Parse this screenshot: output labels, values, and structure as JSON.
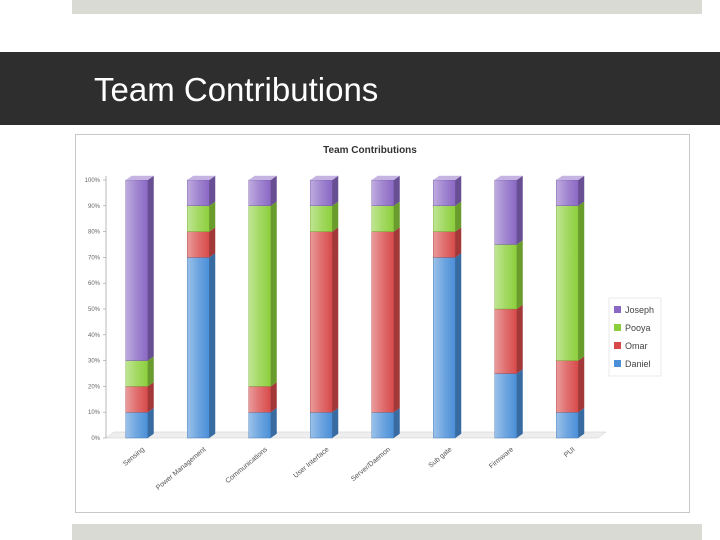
{
  "slide": {
    "title": "Team Contributions"
  },
  "chart_data": {
    "type": "bar",
    "stacked": true,
    "title": "Team Contributions",
    "categories": [
      "Sensing",
      "Power Management",
      "Communications",
      "User Interface",
      "Server/Daemon",
      "Sub gate",
      "Firmware",
      "PUI"
    ],
    "series": [
      {
        "name": "Daniel",
        "color": "#4a8fd8",
        "values": [
          10,
          70,
          10,
          10,
          10,
          70,
          25,
          10
        ]
      },
      {
        "name": "Omar",
        "color": "#d84a4a",
        "values": [
          10,
          10,
          10,
          70,
          70,
          10,
          25,
          20
        ]
      },
      {
        "name": "Pooya",
        "color": "#8ccf3c",
        "values": [
          10,
          10,
          70,
          10,
          10,
          10,
          25,
          60
        ]
      },
      {
        "name": "Joseph",
        "color": "#8a68c4",
        "values": [
          70,
          10,
          10,
          10,
          10,
          10,
          25,
          10
        ]
      }
    ],
    "yticks": [
      "0%",
      "10%",
      "20%",
      "30%",
      "40%",
      "50%",
      "60%",
      "70%",
      "80%",
      "90%",
      "100%"
    ],
    "ylim": [
      0,
      100
    ],
    "legend_position": "right",
    "legend_order": [
      "Joseph",
      "Pooya",
      "Omar",
      "Daniel"
    ],
    "grid": false
  }
}
